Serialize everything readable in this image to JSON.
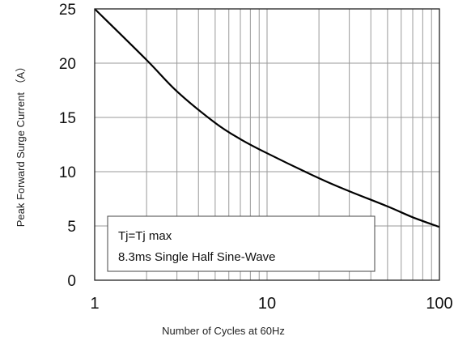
{
  "chart_data": {
    "type": "line",
    "xscale": "log",
    "xlim": [
      1,
      100
    ],
    "ylim": [
      0,
      25
    ],
    "xlabel": "Number of Cycles at 60Hz",
    "ylabel": "Peak Forward Surge Current （A）",
    "x_ticks": [
      "1",
      "10",
      "100"
    ],
    "y_ticks": [
      "0",
      "5",
      "10",
      "15",
      "20",
      "25"
    ],
    "grid": true,
    "legend": {
      "position": "bottom-left",
      "lines": [
        "Tj=Tj max",
        "8.3ms Single Half Sine-Wave"
      ]
    },
    "series": [
      {
        "x": [
          1,
          2,
          3,
          5,
          7,
          10,
          20,
          30,
          50,
          70,
          100
        ],
        "y": [
          25.5,
          20.3,
          17.4,
          14.5,
          13.0,
          11.7,
          9.4,
          8.2,
          6.8,
          5.8,
          4.9
        ]
      }
    ]
  }
}
